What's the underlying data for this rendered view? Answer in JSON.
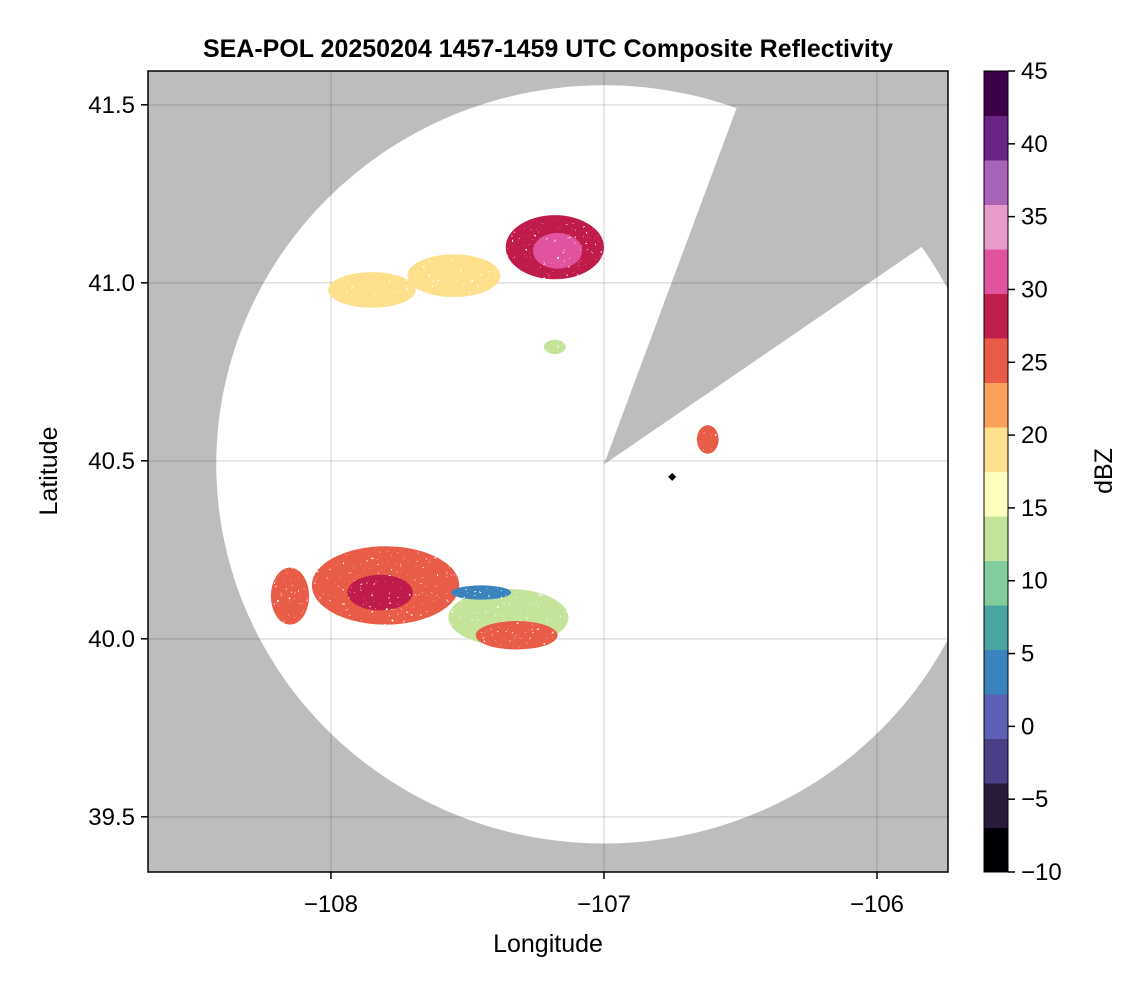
{
  "chart_data": {
    "type": "heatmap",
    "title": "SEA-POL 20250204 1457-1459 UTC Composite Reflectivity",
    "xlabel": "Longitude",
    "ylabel": "Latitude",
    "xlim": [
      -108.67,
      -105.74
    ],
    "ylim": [
      39.345,
      41.595
    ],
    "x_ticks": [
      -108,
      -107,
      -106
    ],
    "x_tick_labels": [
      "−108",
      "−107",
      "−106"
    ],
    "y_ticks": [
      39.5,
      40.0,
      40.5,
      41.0,
      41.5
    ],
    "y_tick_labels": [
      "39.5",
      "40.0",
      "40.5",
      "41.0",
      "41.5"
    ],
    "grid": true,
    "background_color": "#bdbdbd",
    "coverage": {
      "center_lon": -107.0,
      "center_lat": 40.49,
      "radius_lat_deg": 1.065,
      "radius_lon_deg": 1.42,
      "blocked_sector_deg": [
        20,
        55
      ]
    },
    "radar_site": {
      "lon": -106.75,
      "lat": 40.455
    },
    "colorbar": {
      "label": "dBZ",
      "min": -10,
      "max": 45,
      "ticks": [
        -10,
        -5,
        0,
        5,
        10,
        15,
        20,
        25,
        30,
        35,
        40,
        45
      ],
      "tick_labels": [
        "−10",
        "−5",
        "0",
        "5",
        "10",
        "15",
        "20",
        "25",
        "30",
        "35",
        "40",
        "45"
      ],
      "colors": [
        "#000004",
        "#2a1b3d",
        "#4a3f86",
        "#5e60b8",
        "#3b83bd",
        "#47a7a0",
        "#82cc9d",
        "#c4e49c",
        "#ffffbd",
        "#fedf8b",
        "#fba05b",
        "#e95b46",
        "#c01f4c",
        "#e1529f",
        "#e79ccb",
        "#a865b8",
        "#6a2587",
        "#3f004a"
      ]
    },
    "echoes": [
      {
        "name": "north-band-west",
        "lon": -107.85,
        "lat": 40.98,
        "rlon": 0.16,
        "rlat": 0.05,
        "dbz": 20
      },
      {
        "name": "north-band-mid",
        "lon": -107.55,
        "lat": 41.02,
        "rlon": 0.17,
        "rlat": 0.06,
        "dbz": 18
      },
      {
        "name": "north-band-east",
        "lon": -107.18,
        "lat": 41.1,
        "rlon": 0.18,
        "rlat": 0.09,
        "dbz": 27
      },
      {
        "name": "north-band-core",
        "lon": -107.17,
        "lat": 41.09,
        "rlon": 0.09,
        "rlat": 0.05,
        "dbz": 32
      },
      {
        "name": "north-small-cell",
        "lon": -107.18,
        "lat": 40.82,
        "rlon": 0.04,
        "rlat": 0.02,
        "dbz": 12
      },
      {
        "name": "east-cell",
        "lon": -106.62,
        "lat": 40.56,
        "rlon": 0.04,
        "rlat": 0.04,
        "dbz": 25
      },
      {
        "name": "south-band-west",
        "lon": -108.15,
        "lat": 40.12,
        "rlon": 0.07,
        "rlat": 0.08,
        "dbz": 24
      },
      {
        "name": "south-band-main",
        "lon": -107.8,
        "lat": 40.15,
        "rlon": 0.27,
        "rlat": 0.11,
        "dbz": 24
      },
      {
        "name": "south-band-core",
        "lon": -107.82,
        "lat": 40.13,
        "rlon": 0.12,
        "rlat": 0.05,
        "dbz": 29
      },
      {
        "name": "south-band-low",
        "lon": -107.35,
        "lat": 40.06,
        "rlon": 0.22,
        "rlat": 0.08,
        "dbz": 14
      },
      {
        "name": "south-band-streak",
        "lon": -107.32,
        "lat": 40.01,
        "rlon": 0.15,
        "rlat": 0.04,
        "dbz": 26
      },
      {
        "name": "weak-echo-strip",
        "lon": -107.45,
        "lat": 40.13,
        "rlon": 0.11,
        "rlat": 0.02,
        "dbz": 5
      }
    ]
  }
}
